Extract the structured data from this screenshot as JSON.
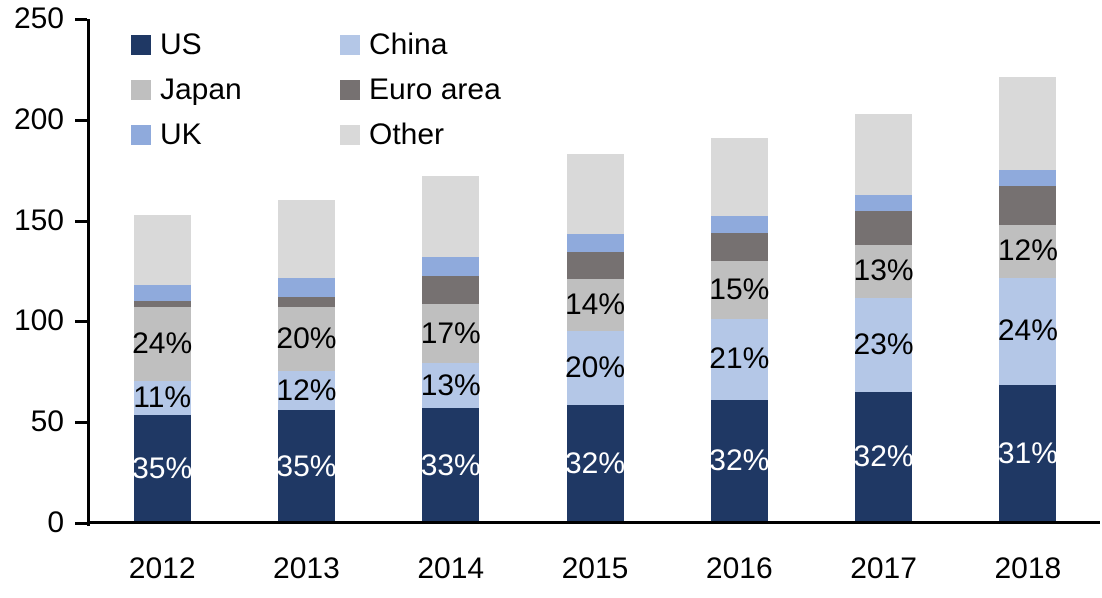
{
  "chart_data": {
    "type": "bar",
    "stacked": true,
    "categories": [
      "2012",
      "2013",
      "2014",
      "2015",
      "2016",
      "2017",
      "2018"
    ],
    "series": [
      {
        "name": "US",
        "color": "#1F3864",
        "label_color": "#FFFFFF",
        "values": [
          53.6,
          56.0,
          56.8,
          58.6,
          61.1,
          65.0,
          68.5
        ],
        "labels": [
          "35%",
          "35%",
          "33%",
          "32%",
          "32%",
          "32%",
          "31%"
        ]
      },
      {
        "name": "China",
        "color": "#B4C7E7",
        "label_color": "#000000",
        "values": [
          16.8,
          19.2,
          22.4,
          36.6,
          40.1,
          46.7,
          53.0
        ],
        "labels": [
          "11%",
          "12%",
          "13%",
          "20%",
          "21%",
          "23%",
          "24%"
        ]
      },
      {
        "name": "Japan",
        "color": "#BFBFBF",
        "label_color": "#000000",
        "values": [
          36.7,
          32.0,
          29.2,
          25.6,
          28.7,
          26.4,
          26.5
        ],
        "labels": [
          "24%",
          "20%",
          "17%",
          "14%",
          "15%",
          "13%",
          "12%"
        ]
      },
      {
        "name": "Euro area",
        "color": "#767171",
        "label_color": "#000000",
        "values": [
          3.2,
          5.0,
          14.2,
          13.8,
          14.0,
          16.7,
          19.2
        ],
        "labels": null
      },
      {
        "name": "UK",
        "color": "#8FAADC",
        "label_color": "#000000",
        "values": [
          7.7,
          9.3,
          9.6,
          8.9,
          8.6,
          8.1,
          7.9
        ],
        "labels": null
      },
      {
        "name": "Other",
        "color": "#D9D9D9",
        "label_color": "#000000",
        "values": [
          35.0,
          38.5,
          39.8,
          39.5,
          38.5,
          40.1,
          45.9
        ],
        "labels": null
      }
    ],
    "y_axis": {
      "min": 0,
      "max": 250,
      "ticks": [
        {
          "value": 0,
          "label": "0"
        },
        {
          "value": 50,
          "label": "50"
        },
        {
          "value": 100,
          "label": "100"
        },
        {
          "value": 150,
          "label": "150"
        },
        {
          "value": 200,
          "label": "200"
        },
        {
          "value": 250,
          "label": "250"
        }
      ]
    },
    "legend_position": "top-left",
    "grid": false,
    "axis_color": "#000000",
    "background_color": "#FFFFFF"
  }
}
